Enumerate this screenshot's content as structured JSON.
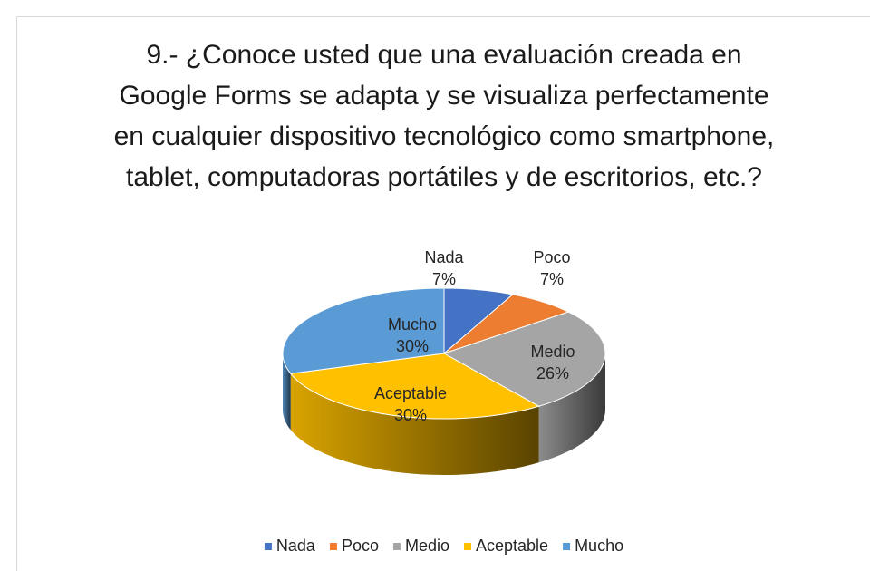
{
  "chart_data": {
    "type": "pie3d",
    "title": "9.- ¿Conoce usted que una evaluación creada en Google Forms se adapta y se visualiza perfectamente en cualquier dispositivo tecnológico como smartphone, tablet, computadoras portátiles y de escritorios, etc.?",
    "categories": [
      "Nada",
      "Poco",
      "Medio",
      "Aceptable",
      "Mucho"
    ],
    "values": [
      7,
      7,
      26,
      30,
      30
    ],
    "value_labels": [
      "7%",
      "7%",
      "26%",
      "30%",
      "30%"
    ],
    "colors": [
      "#4472c4",
      "#ed7d31",
      "#a5a5a5",
      "#ffc000",
      "#5b9bd5"
    ],
    "legend": "bottom"
  }
}
